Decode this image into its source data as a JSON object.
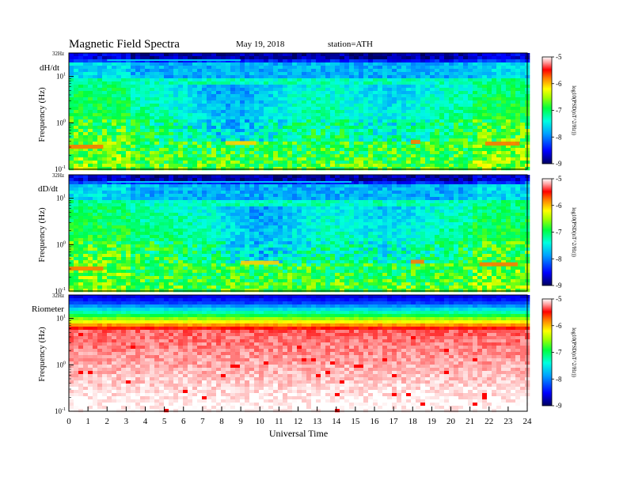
{
  "header": {
    "title": "Magnetic  Field  Spectra",
    "date": "May 19, 2018",
    "station": "station=ATH"
  },
  "colorbar": {
    "label": "log10(PSD(nT^2/Hz))",
    "ticks": [
      "-5",
      "-6",
      "-7",
      "-8",
      "-9"
    ]
  },
  "colors": {
    "deep_blue": "#00008b",
    "blue": "#0040ff",
    "cyan": "#00e0ff",
    "green": "#40e000",
    "yellow": "#ffe000",
    "orange": "#ff8000",
    "red": "#ff0000",
    "white": "#ffffff"
  },
  "chart_data": [
    {
      "type": "heatmap",
      "panel_label": "dH/dt",
      "ylabel": "Frequency (Hz)",
      "xlabel": "",
      "xlim": [
        0,
        24
      ],
      "ylim": [
        0.1,
        32
      ],
      "yscale": "log",
      "top_label": "32Hz",
      "ytick_labels": [
        "10^1",
        "10^0",
        "10^-1"
      ],
      "clim": [
        -9,
        -5
      ],
      "features": [
        {
          "description": "orange band",
          "x": [
            0,
            1.8
          ],
          "y": 0.3
        },
        {
          "description": "yellow band",
          "x": [
            8.2,
            9.8
          ],
          "y": 0.36
        },
        {
          "description": "orange band",
          "x": [
            17.9,
            18.4
          ],
          "y": 0.38
        },
        {
          "description": "orange band",
          "x": [
            21.8,
            23.6
          ],
          "y": 0.35
        }
      ]
    },
    {
      "type": "heatmap",
      "panel_label": "dD/dt",
      "ylabel": "Frequency (Hz)",
      "xlabel": "",
      "xlim": [
        0,
        24
      ],
      "ylim": [
        0.1,
        32
      ],
      "yscale": "log",
      "top_label": "32Hz",
      "ytick_labels": [
        "10^1",
        "10^0",
        "10^-1"
      ],
      "clim": [
        -9,
        -5
      ],
      "features": [
        {
          "description": "orange band",
          "x": [
            0,
            1.8
          ],
          "y": 0.3
        },
        {
          "description": "yellow band",
          "x": [
            9,
            11
          ],
          "y": 0.4
        },
        {
          "description": "orange band",
          "x": [
            17.9,
            18.6
          ],
          "y": 0.42
        },
        {
          "description": "orange band",
          "x": [
            21.5,
            23.5
          ],
          "y": 0.37
        }
      ]
    },
    {
      "type": "heatmap",
      "panel_label": "Riometer",
      "ylabel": "Frequency (Hz)",
      "xlabel": "Universal Time",
      "xlim": [
        0,
        24
      ],
      "ylim": [
        0.1,
        32
      ],
      "yscale": "log",
      "top_label": "32Hz",
      "ytick_labels": [
        "10^1",
        "10^0",
        "10^-1"
      ],
      "xtick_labels": [
        "0",
        "1",
        "2",
        "3",
        "4",
        "5",
        "6",
        "7",
        "8",
        "9",
        "10",
        "11",
        "12",
        "13",
        "14",
        "15",
        "16",
        "17",
        "18",
        "19",
        "20",
        "21",
        "22",
        "23",
        "24"
      ],
      "clim": [
        -9,
        -5
      ],
      "features": []
    }
  ]
}
